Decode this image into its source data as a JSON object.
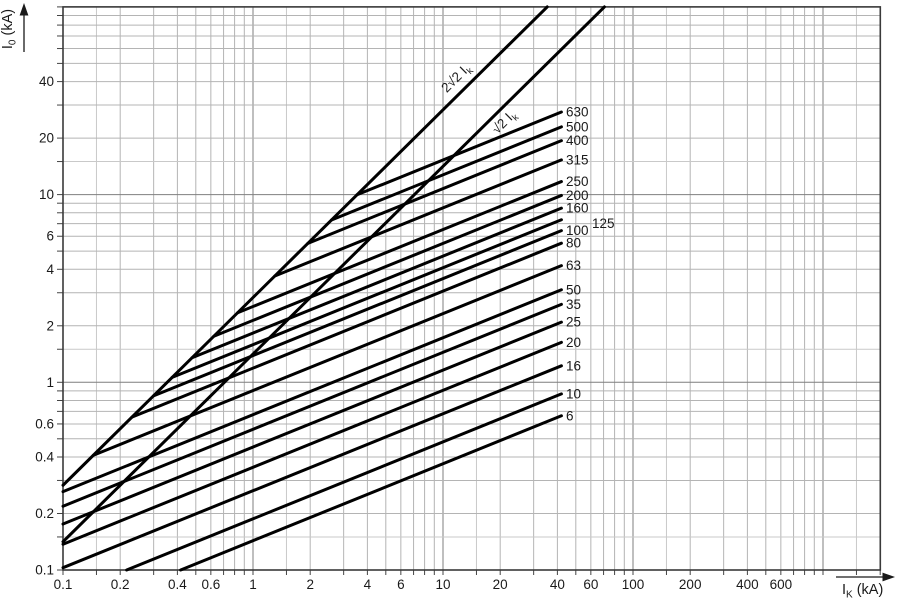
{
  "chart_data": {
    "type": "line",
    "title": "",
    "x_axis": {
      "label_base": "I",
      "label_sub": "K",
      "label_unit": " (kA)",
      "scale": "log",
      "min": 0.1,
      "max": 2000,
      "tick_labels": [
        "0.1",
        "0.2",
        "0.4",
        "0.6",
        "1",
        "2",
        "4",
        "6",
        "10",
        "20",
        "40",
        "60",
        "100",
        "200",
        "400",
        "600"
      ]
    },
    "y_axis": {
      "label_base": "I",
      "label_sub": "0",
      "label_unit": " (kA)",
      "scale": "log",
      "min": 0.1,
      "max": 100,
      "tick_labels": [
        "0.1",
        "0.2",
        "0.4",
        "0.6",
        "1",
        "2",
        "4",
        "6",
        "10",
        "20",
        "40"
      ]
    },
    "grid_multipliers": [
      1,
      1.5,
      2,
      3,
      4,
      5,
      6,
      7,
      8,
      9
    ],
    "grid": "on",
    "legend": "labels-at-line-ends",
    "reference_lines": [
      {
        "name": "2√2 Ik",
        "label_main": "2√2 I",
        "label_sub": "k",
        "factor": 2.8284,
        "label_x": 459,
        "label_y": 81,
        "label_rotation": -45
      },
      {
        "name": "√2 Ik",
        "label_main": "√2 I",
        "label_sub": "k",
        "factor": 1.4142,
        "label_x": 507,
        "label_y": 125,
        "label_rotation": -45
      }
    ],
    "loglog_slope": 0.41,
    "line_end_ik": 42,
    "fuse_lines": [
      {
        "rating": "630",
        "i0_at_40kA": 27
      },
      {
        "rating": "500",
        "i0_at_40kA": 22.5
      },
      {
        "rating": "400",
        "i0_at_40kA": 19
      },
      {
        "rating": "315",
        "i0_at_40kA": 15
      },
      {
        "rating": "250",
        "i0_at_40kA": 11.5
      },
      {
        "rating": "200",
        "i0_at_40kA": 9.7
      },
      {
        "rating": "160",
        "i0_at_40kA": 8.3
      },
      {
        "rating": "125",
        "i0_at_40kA": 7.2,
        "label_dx": 26,
        "label_dy": 4
      },
      {
        "rating": "100",
        "i0_at_40kA": 6.3
      },
      {
        "rating": "80",
        "i0_at_40kA": 5.4
      },
      {
        "rating": "63",
        "i0_at_40kA": 4.1
      },
      {
        "rating": "50",
        "i0_at_40kA": 3.05
      },
      {
        "rating": "35",
        "i0_at_40kA": 2.55
      },
      {
        "rating": "25",
        "i0_at_40kA": 2.05
      },
      {
        "rating": "20",
        "i0_at_40kA": 1.6
      },
      {
        "rating": "16",
        "i0_at_40kA": 1.2
      },
      {
        "rating": "10",
        "i0_at_40kA": 0.85
      },
      {
        "rating": "6",
        "i0_at_40kA": 0.65
      }
    ],
    "colors": {
      "curve": "#000000",
      "grid_major": "#7f7f7f",
      "grid_minor": "#b4b4b4",
      "grid_half": "#c9c9c9",
      "border": "#3a3a3a",
      "tick": "#444444",
      "text": "#1a1a1a"
    }
  }
}
